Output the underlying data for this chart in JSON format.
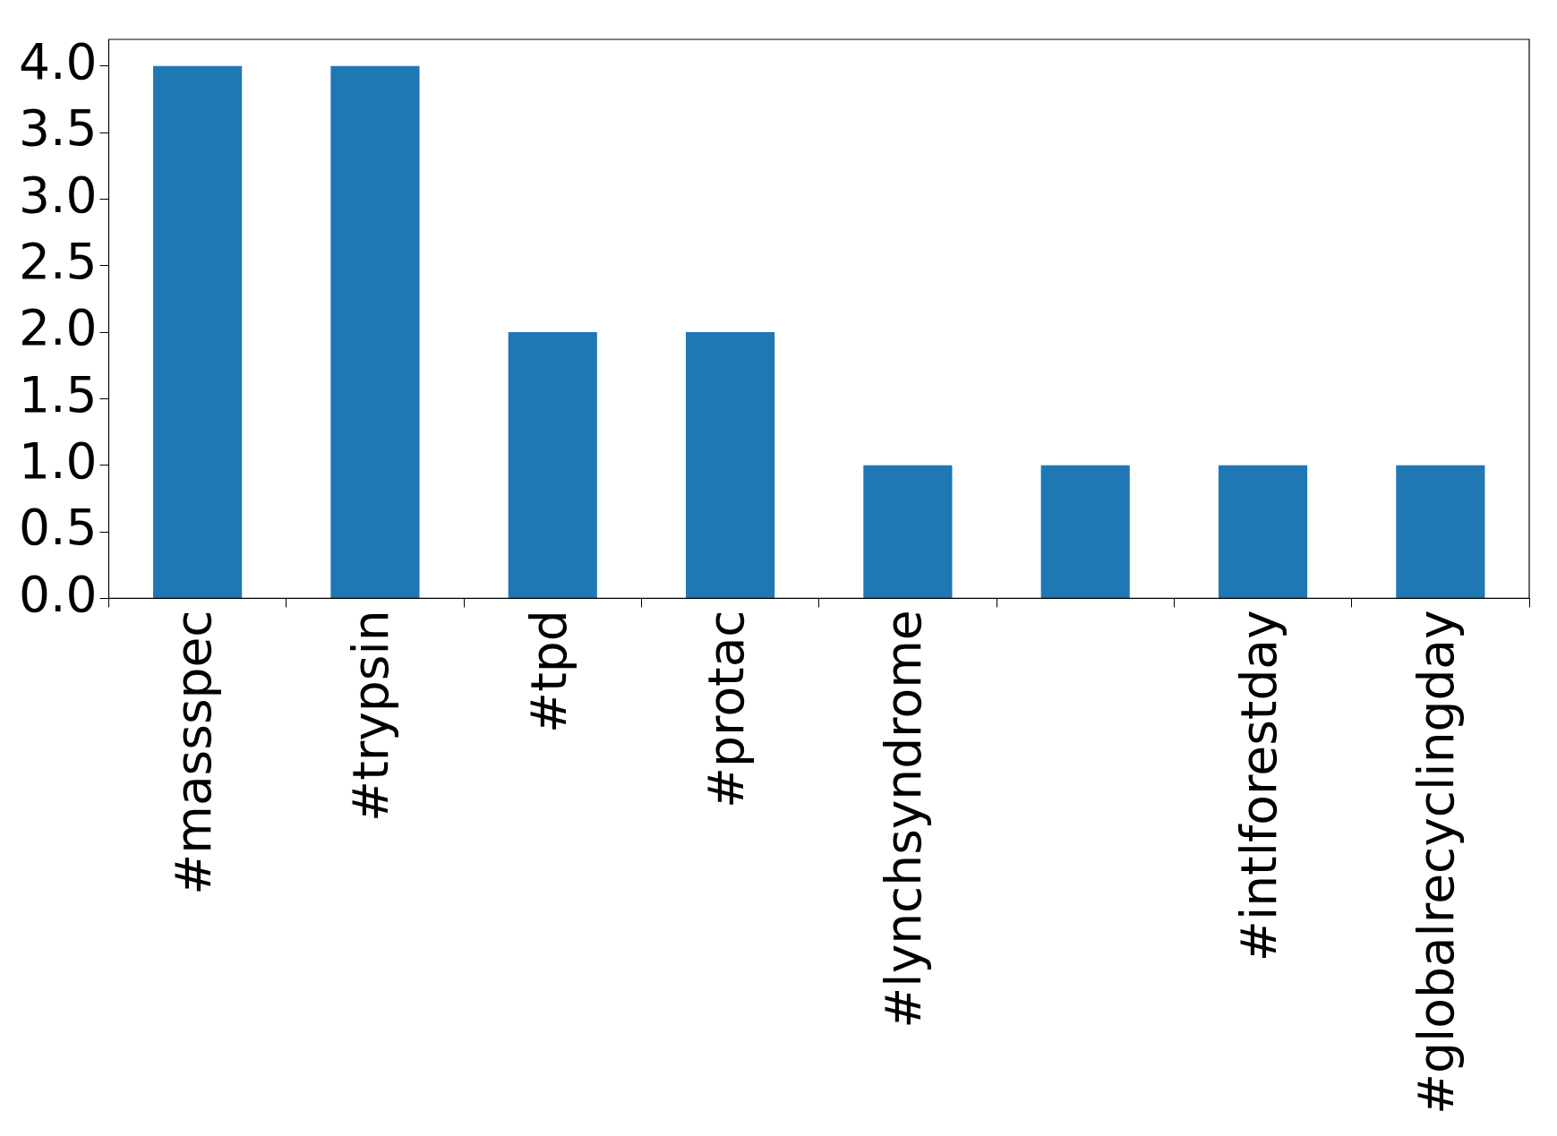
{
  "chart_data": {
    "type": "bar",
    "categories": [
      "#massspec",
      "#trypsin",
      "#tpd",
      "#protac",
      "#lynchsyndrome",
      null,
      "#intlforestday",
      "#globalrecyclingday"
    ],
    "values": [
      4,
      4,
      2,
      2,
      1,
      1,
      1,
      1
    ],
    "color": "#1f77b4",
    "ylim": [
      0,
      4.2
    ],
    "yticks": [
      {
        "value": 0,
        "label": "0.0"
      },
      {
        "value": 0.5,
        "label": "0.5"
      },
      {
        "value": 1,
        "label": "1.0"
      },
      {
        "value": 1.5,
        "label": "1.5"
      },
      {
        "value": 2,
        "label": "2.0"
      },
      {
        "value": 2.5,
        "label": "2.5"
      },
      {
        "value": 3,
        "label": "3.0"
      },
      {
        "value": 3.5,
        "label": "3.5"
      },
      {
        "value": 4,
        "label": "4.0"
      }
    ],
    "grid": false,
    "legend": false
  }
}
